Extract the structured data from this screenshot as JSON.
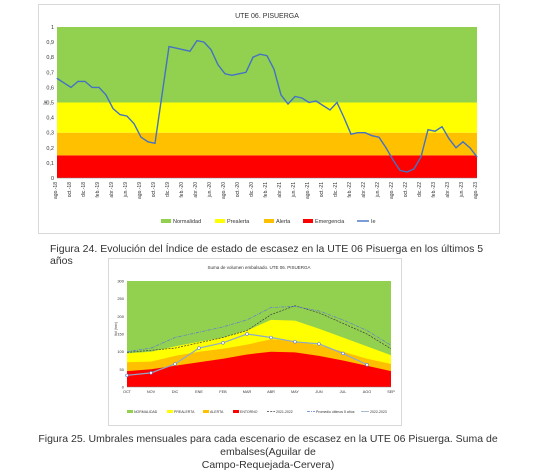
{
  "figure1": {
    "caption": "Figura 24.   Evolución del Índice de estado de escasez en la UTE 06 Pisuerga en los últimos 5 años"
  },
  "figure2": {
    "caption_line1": "Figura 25.   Umbrales mensuales para cada escenario de escasez en la UTE 06 Pisuerga. Suma de embalses(Aguilar de",
    "caption_line2": "Campo-Requejada-Cervera)"
  },
  "colors": {
    "normalidad": "#92d050",
    "prealerta": "#ffff00",
    "alerta": "#ffc000",
    "emergencia": "#ff0000",
    "ie_line": "#4472c4"
  },
  "chart_data": [
    {
      "type": "line",
      "title": "UTE 06. PISUERGA",
      "ylabel": "Ie",
      "xlabel": "",
      "ylim": [
        0,
        1
      ],
      "yticks": [
        "0",
        "0,1",
        "0,2",
        "0,3",
        "0,4",
        "0,5",
        "0,6",
        "0,7",
        "0,8",
        "0,9",
        "1"
      ],
      "categories": [
        "ago.-18",
        "oct.-18",
        "dic.-18",
        "feb.-19",
        "abr.-19",
        "jun.-19",
        "ago.-19",
        "oct.-19",
        "dic.-19",
        "feb.-20",
        "abr.-20",
        "jun.-20",
        "ago.-20",
        "oct.-20",
        "dic.-20",
        "feb.-21",
        "abr.-21",
        "jun.-21",
        "ago.-21",
        "oct.-21",
        "dic.-21",
        "feb.-22",
        "abr.-22",
        "jun.-22",
        "ago.-22",
        "oct.-22",
        "dic.-22",
        "feb.-23",
        "abr.-23",
        "jun.-23",
        "ago.-23"
      ],
      "bands": [
        {
          "name": "Emergencia",
          "from": 0,
          "to": 0.15,
          "color_key": "emergencia"
        },
        {
          "name": "Alerta",
          "from": 0.15,
          "to": 0.3,
          "color_key": "alerta"
        },
        {
          "name": "Prealerta",
          "from": 0.3,
          "to": 0.5,
          "color_key": "prealerta"
        },
        {
          "name": "Normalidad",
          "from": 0.5,
          "to": 1,
          "color_key": "normalidad"
        }
      ],
      "legend": [
        "Normalidad",
        "Prealerta",
        "Alerta",
        "Emergencia",
        "Ie"
      ],
      "legend_placement": "bottom",
      "grid": false,
      "series": [
        {
          "name": "Ie",
          "x": [
            "ago.-18",
            "sep.-18",
            "oct.-18",
            "nov.-18",
            "dic.-18",
            "ene.-19",
            "feb.-19",
            "mar.-19",
            "abr.-19",
            "may.-19",
            "jun.-19",
            "jul.-19",
            "ago.-19",
            "sep.-19",
            "oct.-19",
            "nov.-19",
            "dic.-19",
            "ene.-20",
            "feb.-20",
            "mar.-20",
            "abr.-20",
            "may.-20",
            "jun.-20",
            "jul.-20",
            "ago.-20",
            "sep.-20",
            "oct.-20",
            "nov.-20",
            "dic.-20",
            "ene.-21",
            "feb.-21",
            "mar.-21",
            "abr.-21",
            "may.-21",
            "jun.-21",
            "jul.-21",
            "ago.-21",
            "sep.-21",
            "oct.-21",
            "nov.-21",
            "dic.-21",
            "ene.-22",
            "feb.-22",
            "mar.-22",
            "abr.-22",
            "may.-22",
            "jun.-22",
            "jul.-22",
            "ago.-22",
            "sep.-22",
            "oct.-22",
            "nov.-22",
            "dic.-22",
            "ene.-23",
            "feb.-23",
            "mar.-23",
            "abr.-23",
            "may.-23",
            "jun.-23",
            "jul.-23",
            "ago.-23"
          ],
          "values": [
            0.66,
            0.63,
            0.6,
            0.64,
            0.64,
            0.6,
            0.6,
            0.55,
            0.46,
            0.42,
            0.41,
            0.36,
            0.27,
            0.24,
            0.23,
            0.55,
            0.87,
            0.86,
            0.85,
            0.84,
            0.91,
            0.9,
            0.85,
            0.75,
            0.69,
            0.68,
            0.69,
            0.7,
            0.8,
            0.82,
            0.81,
            0.72,
            0.55,
            0.49,
            0.54,
            0.53,
            0.5,
            0.51,
            0.48,
            0.45,
            0.5,
            0.4,
            0.29,
            0.3,
            0.3,
            0.28,
            0.27,
            0.2,
            0.12,
            0.05,
            0.04,
            0.06,
            0.14,
            0.32,
            0.31,
            0.34,
            0.26,
            0.2,
            0.24,
            0.2,
            0.14
          ]
        }
      ]
    },
    {
      "type": "area",
      "title": "Suma de volumen embalsado. UTE 06. PISUERGA",
      "ylabel": "Vol (hm³)",
      "xlabel": "",
      "ylim": [
        0,
        300
      ],
      "yticks": [
        "0",
        "50",
        "100",
        "150",
        "200",
        "250",
        "300"
      ],
      "categories": [
        "OCT",
        "NOV",
        "DIC",
        "ENE",
        "FEB",
        "MAR",
        "ABR",
        "MAY",
        "JUN",
        "JUL",
        "AGO",
        "SEP"
      ],
      "legend": [
        "NORMALIDAD",
        "PREALERTA",
        "ALERTA",
        "ENTORNO",
        "2021-2022",
        "Promedio últimos 5 años",
        "2022-2023"
      ],
      "legend_placement": "bottom",
      "grid": false,
      "thresholds": {
        "normalidad_top": 300,
        "prealerta": [
          95,
          100,
          115,
          128,
          140,
          160,
          190,
          188,
          165,
          140,
          115,
          90
        ],
        "alerta": [
          70,
          72,
          88,
          100,
          108,
          120,
          135,
          130,
          118,
          100,
          80,
          65
        ],
        "emergencia": [
          45,
          50,
          60,
          70,
          80,
          92,
          100,
          98,
          88,
          75,
          60,
          45
        ]
      },
      "series": [
        {
          "name": "2021-2022",
          "values": [
            98,
            104,
            110,
            125,
            140,
            160,
            205,
            230,
            210,
            180,
            150,
            108
          ]
        },
        {
          "name": "Promedio últimos 5 años",
          "values": [
            100,
            110,
            140,
            155,
            170,
            190,
            225,
            228,
            215,
            190,
            160,
            118
          ]
        },
        {
          "name": "2022-2023",
          "values": [
            33,
            40,
            65,
            110,
            125,
            150,
            140,
            128,
            122,
            95,
            63,
            null
          ]
        }
      ]
    }
  ]
}
